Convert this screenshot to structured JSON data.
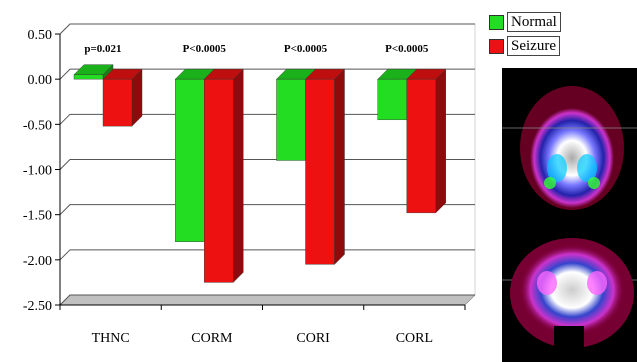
{
  "chart_data": {
    "type": "bar",
    "categories": [
      "THNC",
      "CORM",
      "CORI",
      "CORL"
    ],
    "series": [
      {
        "name": "Normal",
        "values": [
          0.05,
          -1.8,
          -0.9,
          -0.45
        ],
        "color": "#22dd22"
      },
      {
        "name": "Seizure",
        "values": [
          -0.52,
          -2.25,
          -2.05,
          -1.48
        ],
        "color": "#ee1111"
      }
    ],
    "p_values": [
      "p=0.021",
      "P<0.0005",
      "P<0.0005",
      "P<0.0005"
    ],
    "yticks": [
      "0.50",
      "0.00",
      "-0.50",
      "-1.00",
      "-1.50",
      "-2.00",
      "-2.50"
    ],
    "ylim": [
      -2.5,
      0.5
    ],
    "title": "",
    "xlabel": "",
    "ylabel": "",
    "grid": true,
    "legend_position": "top-right"
  },
  "images": [
    {
      "name": "brain-scan-axial"
    },
    {
      "name": "brain-scan-coronal"
    }
  ]
}
